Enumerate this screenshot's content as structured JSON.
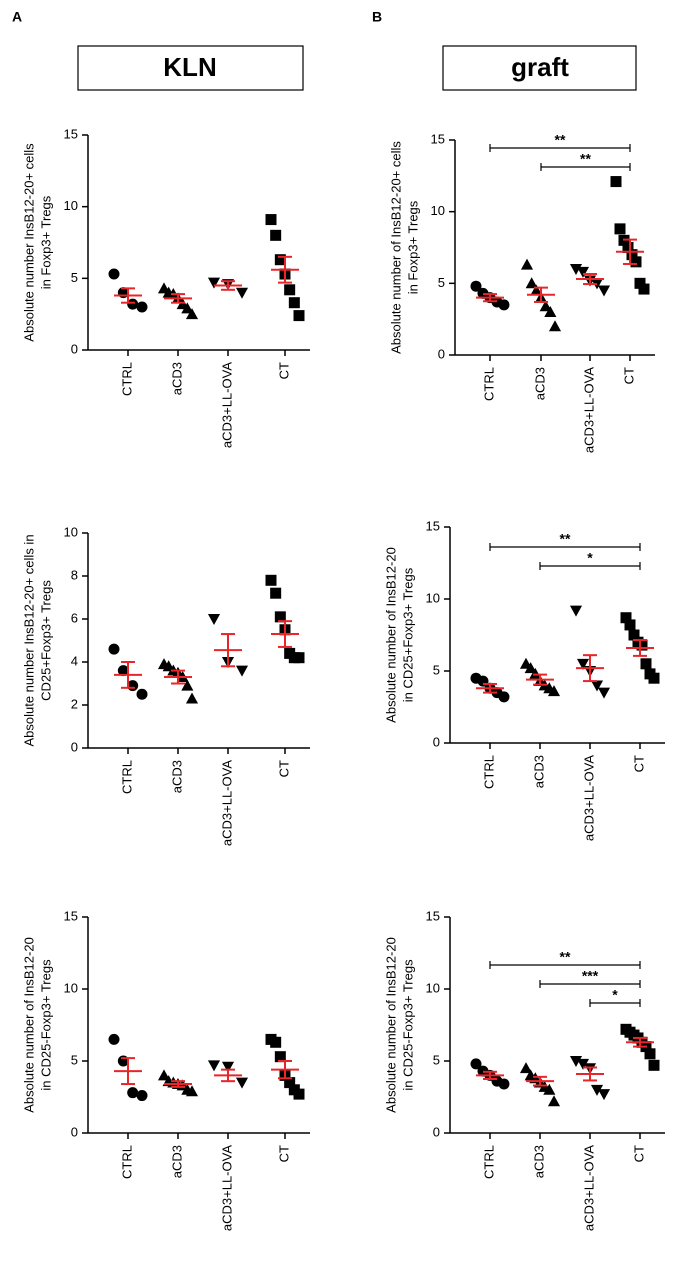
{
  "panels": [
    {
      "label": "A",
      "title": "KLN"
    },
    {
      "label": "B",
      "title": "graft"
    }
  ],
  "chart_data": [
    {
      "type": "dotplot",
      "ylabel": [
        "Absolute number InsB12-20+ cells",
        "in Foxp3+ Tregs"
      ],
      "categories": [
        "CTRL",
        "aCD3",
        "aCD3+LL-OVA",
        "CT"
      ],
      "markers": [
        "circle",
        "triangle-up",
        "triangle-down",
        "square"
      ],
      "points": [
        [
          5.3,
          4.0,
          3.2,
          3.0
        ],
        [
          4.3,
          4.0,
          3.9,
          3.6,
          3.2,
          2.9,
          2.5
        ],
        [
          4.7,
          4.6,
          4.0
        ],
        [
          9.1,
          8.0,
          6.3,
          5.3,
          4.2,
          3.3,
          2.4
        ]
      ],
      "means": [
        3.8,
        3.6,
        4.5,
        5.6
      ],
      "sems": [
        0.5,
        0.3,
        0.3,
        0.9
      ],
      "point_color": "#000000",
      "mean_color": "#e8262a",
      "ylim": [
        0,
        15
      ],
      "yticks": [
        0,
        5,
        10,
        15
      ],
      "brackets": []
    },
    {
      "type": "dotplot",
      "ylabel": [
        "Absolute number of InsB12-20+ cells",
        "in Foxp3+ Tregs"
      ],
      "categories": [
        "CTRL",
        "aCD3",
        "aCD3+LL-OVA",
        "CT"
      ],
      "markers": [
        "circle",
        "triangle-up",
        "triangle-down",
        "square"
      ],
      "points": [
        [
          4.8,
          4.3,
          4.0,
          3.7,
          3.5
        ],
        [
          6.3,
          5.0,
          4.5,
          4.0,
          3.4,
          3.0,
          2.0
        ],
        [
          6.0,
          5.8,
          5.2,
          5.0,
          4.5
        ],
        [
          12.1,
          8.8,
          8.0,
          7.5,
          7.0,
          6.5,
          5.0,
          4.6
        ]
      ],
      "means": [
        4.0,
        4.2,
        5.3,
        7.2
      ],
      "sems": [
        0.25,
        0.5,
        0.35,
        0.85
      ],
      "point_color": "#000000",
      "mean_color": "#e8262a",
      "ylim": [
        0,
        15
      ],
      "yticks": [
        0,
        5,
        10,
        15
      ],
      "brackets": [
        {
          "start": "CTRL",
          "end": "CT",
          "label": "**"
        },
        {
          "start": "aCD3",
          "end": "CT",
          "label": "**"
        }
      ]
    },
    {
      "type": "dotplot",
      "ylabel": [
        "Absolute number InsB12-20+ cells in",
        "CD25+Foxp3+ Tregs"
      ],
      "categories": [
        "CTRL",
        "aCD3",
        "aCD3+LL-OVA",
        "CT"
      ],
      "markers": [
        "circle",
        "triangle-up",
        "triangle-down",
        "square"
      ],
      "points": [
        [
          4.6,
          3.6,
          2.9,
          2.5
        ],
        [
          3.9,
          3.8,
          3.6,
          3.5,
          3.3,
          2.9,
          2.3
        ],
        [
          6.0,
          4.0,
          3.6
        ],
        [
          7.8,
          7.2,
          6.1,
          5.5,
          4.4,
          4.2,
          4.2
        ]
      ],
      "means": [
        3.4,
        3.3,
        4.55,
        5.3
      ],
      "sems": [
        0.6,
        0.3,
        0.75,
        0.6
      ],
      "point_color": "#000000",
      "mean_color": "#e8262a",
      "ylim": [
        0,
        10
      ],
      "yticks": [
        0,
        2,
        4,
        6,
        8,
        10
      ],
      "brackets": []
    },
    {
      "type": "dotplot",
      "ylabel": [
        "Absolute number of InsB12-20",
        "in CD25+Foxp3+ Tregs"
      ],
      "categories": [
        "CTRL",
        "aCD3",
        "aCD3+LL-OVA",
        "CT"
      ],
      "markers": [
        "circle",
        "triangle-up",
        "triangle-down",
        "square"
      ],
      "points": [
        [
          4.5,
          4.3,
          3.8,
          3.5,
          3.2
        ],
        [
          5.5,
          5.2,
          4.8,
          4.3,
          4.0,
          3.8,
          3.6
        ],
        [
          9.2,
          5.5,
          5.0,
          4.0,
          3.5
        ],
        [
          8.7,
          8.2,
          7.5,
          7.0,
          6.8,
          5.5,
          4.8,
          4.5
        ]
      ],
      "means": [
        3.8,
        4.4,
        5.2,
        6.6
      ],
      "sems": [
        0.3,
        0.35,
        0.9,
        0.55
      ],
      "point_color": "#000000",
      "mean_color": "#e8262a",
      "ylim": [
        0,
        15
      ],
      "yticks": [
        0,
        5,
        10,
        15
      ],
      "brackets": [
        {
          "start": "CTRL",
          "end": "CT",
          "label": "**"
        },
        {
          "start": "aCD3",
          "end": "CT",
          "label": "*"
        }
      ]
    },
    {
      "type": "dotplot",
      "ylabel": [
        "Absolute number of InsB12-20",
        "in CD25-Foxp3+ Tregs"
      ],
      "categories": [
        "CTRL",
        "aCD3",
        "aCD3+LL-OVA",
        "CT"
      ],
      "markers": [
        "circle",
        "triangle-up",
        "triangle-down",
        "square"
      ],
      "points": [
        [
          6.5,
          5.0,
          2.8,
          2.6
        ],
        [
          4.0,
          3.6,
          3.5,
          3.4,
          3.3,
          3.0,
          2.9
        ],
        [
          4.7,
          4.6,
          3.5
        ],
        [
          6.5,
          6.3,
          5.3,
          4.0,
          3.5,
          3.0,
          2.7
        ]
      ],
      "means": [
        4.3,
        3.4,
        4.0,
        4.4
      ],
      "sems": [
        0.9,
        0.2,
        0.4,
        0.6
      ],
      "point_color": "#000000",
      "mean_color": "#e8262a",
      "ylim": [
        0,
        15
      ],
      "yticks": [
        0,
        5,
        10,
        15
      ],
      "brackets": []
    },
    {
      "type": "dotplot",
      "ylabel": [
        "Absolute number of InsB12-20",
        "in CD25-Foxp3+ Tregs"
      ],
      "categories": [
        "CTRL",
        "aCD3",
        "aCD3+LL-OVA",
        "CT"
      ],
      "markers": [
        "circle",
        "triangle-up",
        "triangle-down",
        "square"
      ],
      "points": [
        [
          4.8,
          4.3,
          4.0,
          3.6,
          3.4
        ],
        [
          4.5,
          4.0,
          3.8,
          3.5,
          3.2,
          3.0,
          2.2
        ],
        [
          5.0,
          4.8,
          4.5,
          3.0,
          2.7
        ],
        [
          7.2,
          7.0,
          6.8,
          6.6,
          6.3,
          6.0,
          5.5,
          4.7
        ]
      ],
      "means": [
        4.0,
        3.6,
        4.1,
        6.3
      ],
      "sems": [
        0.25,
        0.3,
        0.45,
        0.3
      ],
      "point_color": "#000000",
      "mean_color": "#e8262a",
      "ylim": [
        0,
        15
      ],
      "yticks": [
        0,
        5,
        10,
        15
      ],
      "brackets": [
        {
          "start": "CTRL",
          "end": "CT",
          "label": "**"
        },
        {
          "start": "aCD3",
          "end": "CT",
          "label": "***"
        },
        {
          "start": "aCD3+LL-OVA",
          "end": "CT",
          "label": "*"
        }
      ]
    }
  ]
}
